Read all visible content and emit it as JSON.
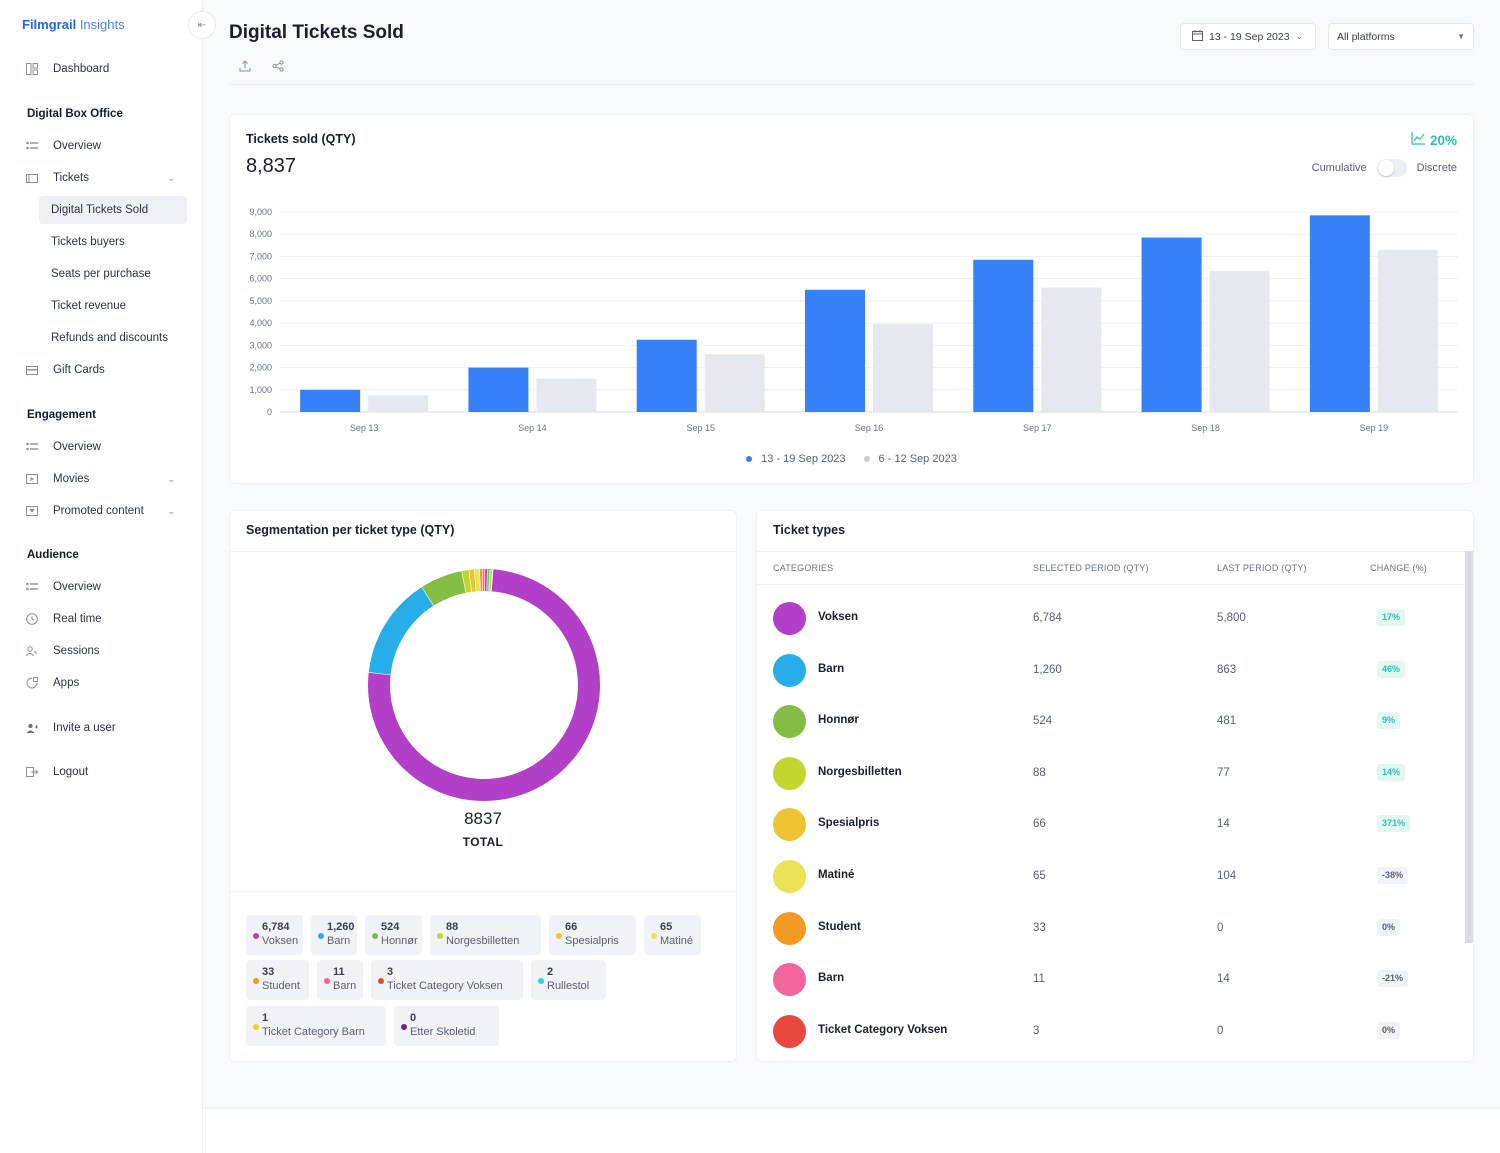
{
  "brand": {
    "name": "Filmgrail",
    "suffix": "Insights"
  },
  "sidebar": {
    "dashboard": "Dashboard",
    "sections": {
      "box_office": "Digital Box Office",
      "engagement": "Engagement",
      "audience": "Audience"
    },
    "box_office_items": {
      "overview": "Overview",
      "tickets": "Tickets",
      "gift_cards": "Gift Cards"
    },
    "ticket_sub_items": [
      "Digital Tickets Sold",
      "Tickets buyers",
      "Seats per purchase",
      "Ticket revenue",
      "Refunds and discounts"
    ],
    "engagement_items": {
      "overview": "Overview",
      "movies": "Movies",
      "promoted": "Promoted content"
    },
    "audience_items": {
      "overview": "Overview",
      "realtime": "Real time",
      "sessions": "Sessions",
      "apps": "Apps"
    },
    "invite": "Invite a user",
    "logout": "Logout"
  },
  "header": {
    "title": "Digital Tickets Sold",
    "date_range": "13 - 19 Sep 2023",
    "platform": "All platforms"
  },
  "tickets_card": {
    "title": "Tickets sold (QTY)",
    "total": "8,837",
    "trend": "20%",
    "toggle_left": "Cumulative",
    "toggle_right": "Discrete"
  },
  "chart_data": {
    "type": "bar",
    "categories": [
      "Sep 13",
      "Sep 14",
      "Sep 15",
      "Sep 16",
      "Sep 17",
      "Sep 18",
      "Sep 19"
    ],
    "series": [
      {
        "name": "13 - 19 Sep 2023",
        "color": "#3680f8",
        "values": [
          1000,
          2000,
          3250,
          5500,
          6850,
          7850,
          8850
        ]
      },
      {
        "name": "6 - 12 Sep 2023",
        "color": "#e6e8f0",
        "values": [
          750,
          1500,
          2600,
          3950,
          5600,
          6350,
          7300
        ]
      }
    ],
    "y_ticks": [
      "9,000",
      "8,000",
      "7,000",
      "6,000",
      "5,000",
      "4,000",
      "3,000",
      "2,000",
      "1,000",
      "0"
    ],
    "ylim": [
      0,
      9000
    ],
    "grid": true,
    "legend": "bottom-center"
  },
  "segmentation": {
    "title": "Segmentation per ticket type (QTY)",
    "total": "8837",
    "total_label": "TOTAL",
    "slices": [
      {
        "value": 6784,
        "color": "#b23fc7"
      },
      {
        "value": 1260,
        "color": "#27aee8"
      },
      {
        "value": 524,
        "color": "#83bd44"
      },
      {
        "value": 88,
        "color": "#c2d52e"
      },
      {
        "value": 66,
        "color": "#ecc330"
      },
      {
        "value": 65,
        "color": "#ece257"
      },
      {
        "value": 33,
        "color": "#f29a23"
      },
      {
        "value": 11,
        "color": "#f2679a"
      },
      {
        "value": 3,
        "color": "#e8483e"
      },
      {
        "value": 2,
        "color": "#27d9d9"
      },
      {
        "value": 1,
        "color": "#f0d020"
      }
    ],
    "chips": [
      {
        "val": "6,784",
        "lbl": "Voksen",
        "color": "#b23fc7"
      },
      {
        "val": "1,260",
        "lbl": "Barn",
        "color": "#27aee8"
      },
      {
        "val": "524",
        "lbl": "Honnør",
        "color": "#83bd44"
      },
      {
        "val": "88",
        "lbl": "Norgesbilletten",
        "color": "#c2d52e"
      },
      {
        "val": "66",
        "lbl": "Spesialpris",
        "color": "#ecc330"
      },
      {
        "val": "65",
        "lbl": "Matiné",
        "color": "#ece257"
      },
      {
        "val": "33",
        "lbl": "Student",
        "color": "#f29a23"
      },
      {
        "val": "11",
        "lbl": "Barn",
        "color": "#f2679a"
      },
      {
        "val": "3",
        "lbl": "Ticket Category Voksen",
        "color": "#e8483e"
      },
      {
        "val": "2",
        "lbl": "Rullestol",
        "color": "#27d9d9"
      },
      {
        "val": "1",
        "lbl": "Ticket Category Barn",
        "color": "#f0d020"
      },
      {
        "val": "0",
        "lbl": "Etter Skoletid",
        "color": "#7a1a8c"
      }
    ]
  },
  "ticket_types": {
    "title": "Ticket types",
    "headers": [
      "CATEGORIES",
      "SELECTED PERIOD (QTY)",
      "LAST PERIOD (QTY)",
      "CHANGE (%)"
    ],
    "rows": [
      {
        "name": "Voksen",
        "selected": "6,784",
        "last": "5,800",
        "change": "17%",
        "up": true,
        "color": "#b23fc7"
      },
      {
        "name": "Barn",
        "selected": "1,260",
        "last": "863",
        "change": "46%",
        "up": true,
        "color": "#27aee8"
      },
      {
        "name": "Honnør",
        "selected": "524",
        "last": "481",
        "change": "9%",
        "up": true,
        "color": "#83bd44"
      },
      {
        "name": "Norgesbilletten",
        "selected": "88",
        "last": "77",
        "change": "14%",
        "up": true,
        "color": "#c2d52e"
      },
      {
        "name": "Spesialpris",
        "selected": "66",
        "last": "14",
        "change": "371%",
        "up": true,
        "color": "#ecc330"
      },
      {
        "name": "Matiné",
        "selected": "65",
        "last": "104",
        "change": "-38%",
        "up": false,
        "color": "#ece257"
      },
      {
        "name": "Student",
        "selected": "33",
        "last": "0",
        "change": "0%",
        "up": false,
        "color": "#f29a23"
      },
      {
        "name": "Barn",
        "selected": "11",
        "last": "14",
        "change": "-21%",
        "up": false,
        "color": "#f2679a"
      },
      {
        "name": "Ticket Category Voksen",
        "selected": "3",
        "last": "0",
        "change": "0%",
        "up": false,
        "color": "#e8483e"
      }
    ]
  }
}
